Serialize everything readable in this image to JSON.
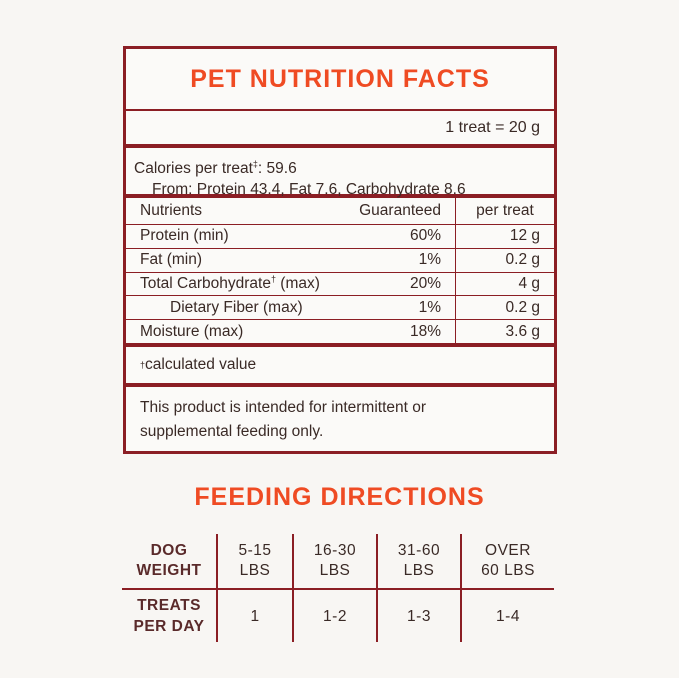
{
  "nutrition": {
    "title": "PET NUTRITION FACTS",
    "serving": "1 treat = 20 g",
    "calories_line": "Calories per treat",
    "calories_mark": "‡",
    "calories_value": ": 59.6",
    "calories_from": "From: Protein 43.4, Fat 7.6, Carbohydrate 8.6",
    "headers": {
      "nutrient": "Nutrients",
      "guaranteed": "Guaranteed",
      "per_treat": "per treat"
    },
    "rows": [
      {
        "name": "Protein (min)",
        "guaranteed": "60%",
        "per_treat": "12 g"
      },
      {
        "name": "Fat (min)",
        "guaranteed": "1%",
        "per_treat": "0.2 g"
      },
      {
        "name": "Total Carbohydrate",
        "mark": "†",
        "suffix": " (max)",
        "guaranteed": "20%",
        "per_treat": "4 g"
      },
      {
        "name": "Dietary Fiber (max)",
        "guaranteed": "1%",
        "per_treat": "0.2 g"
      },
      {
        "name": "Moisture (max)",
        "guaranteed": "18%",
        "per_treat": "3.6 g"
      }
    ],
    "footnote_mark": "†",
    "footnote": "calculated value",
    "disclaimer_1": "This product is intended for intermittent or",
    "disclaimer_2": "supplemental feeding only."
  },
  "feeding": {
    "title": "FEEDING DIRECTIONS",
    "row1_label_1": "DOG",
    "row1_label_2": "WEIGHT",
    "row2_label_1": "TREATS",
    "row2_label_2": "PER DAY",
    "columns": [
      {
        "w1": "5-15",
        "w2": "LBS",
        "treats": "1"
      },
      {
        "w1": "16-30",
        "w2": "LBS",
        "treats": "1-2"
      },
      {
        "w1": "31-60",
        "w2": "LBS",
        "treats": "1-3"
      },
      {
        "w1": "OVER",
        "w2": "60 LBS",
        "treats": "1-4"
      }
    ]
  },
  "colors": {
    "accent": "#ef4b23",
    "border": "#8b1e24",
    "text": "#3a2a26"
  }
}
